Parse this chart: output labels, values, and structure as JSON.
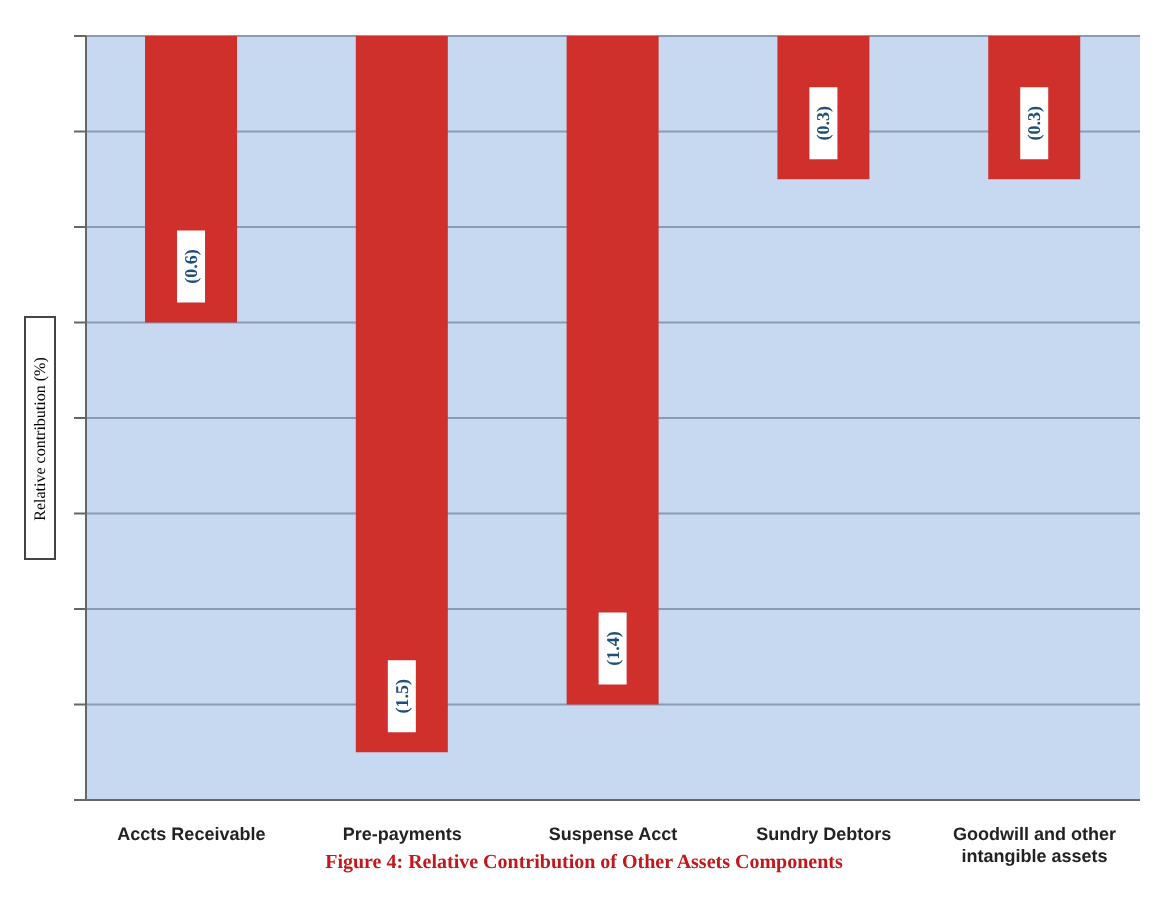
{
  "chart_data": {
    "type": "bar",
    "title": "Figure 4: Relative Contribution of Other Assets Components",
    "ylabel": "Relative contribution (%)",
    "categories": [
      "Accts Receivable",
      "Pre-payments",
      "Suspense Acct",
      "Sundry Debtors",
      "Goodwill and other intangible assets"
    ],
    "values": [
      -0.6,
      -1.5,
      -1.4,
      -0.3,
      -0.3
    ],
    "value_labels": [
      "(0.6)",
      "(1.5)",
      "(1.4)",
      "(0.3)",
      "(0.3)"
    ],
    "color": "#d0302c",
    "ylim": [
      -1.6,
      0
    ],
    "yticks": [
      {
        "value": -1.6,
        "label": null
      },
      {
        "value": -1.4,
        "label": null
      },
      {
        "value": -1.2,
        "label": null
      },
      {
        "value": -1.0,
        "label": null
      },
      {
        "value": -0.8,
        "label": null
      },
      {
        "value": -0.6,
        "label": null
      },
      {
        "value": -0.4,
        "label": null
      },
      {
        "value": -0.2,
        "label": null
      },
      {
        "value": 0,
        "label": null
      }
    ],
    "grid": "y",
    "legend": false
  }
}
